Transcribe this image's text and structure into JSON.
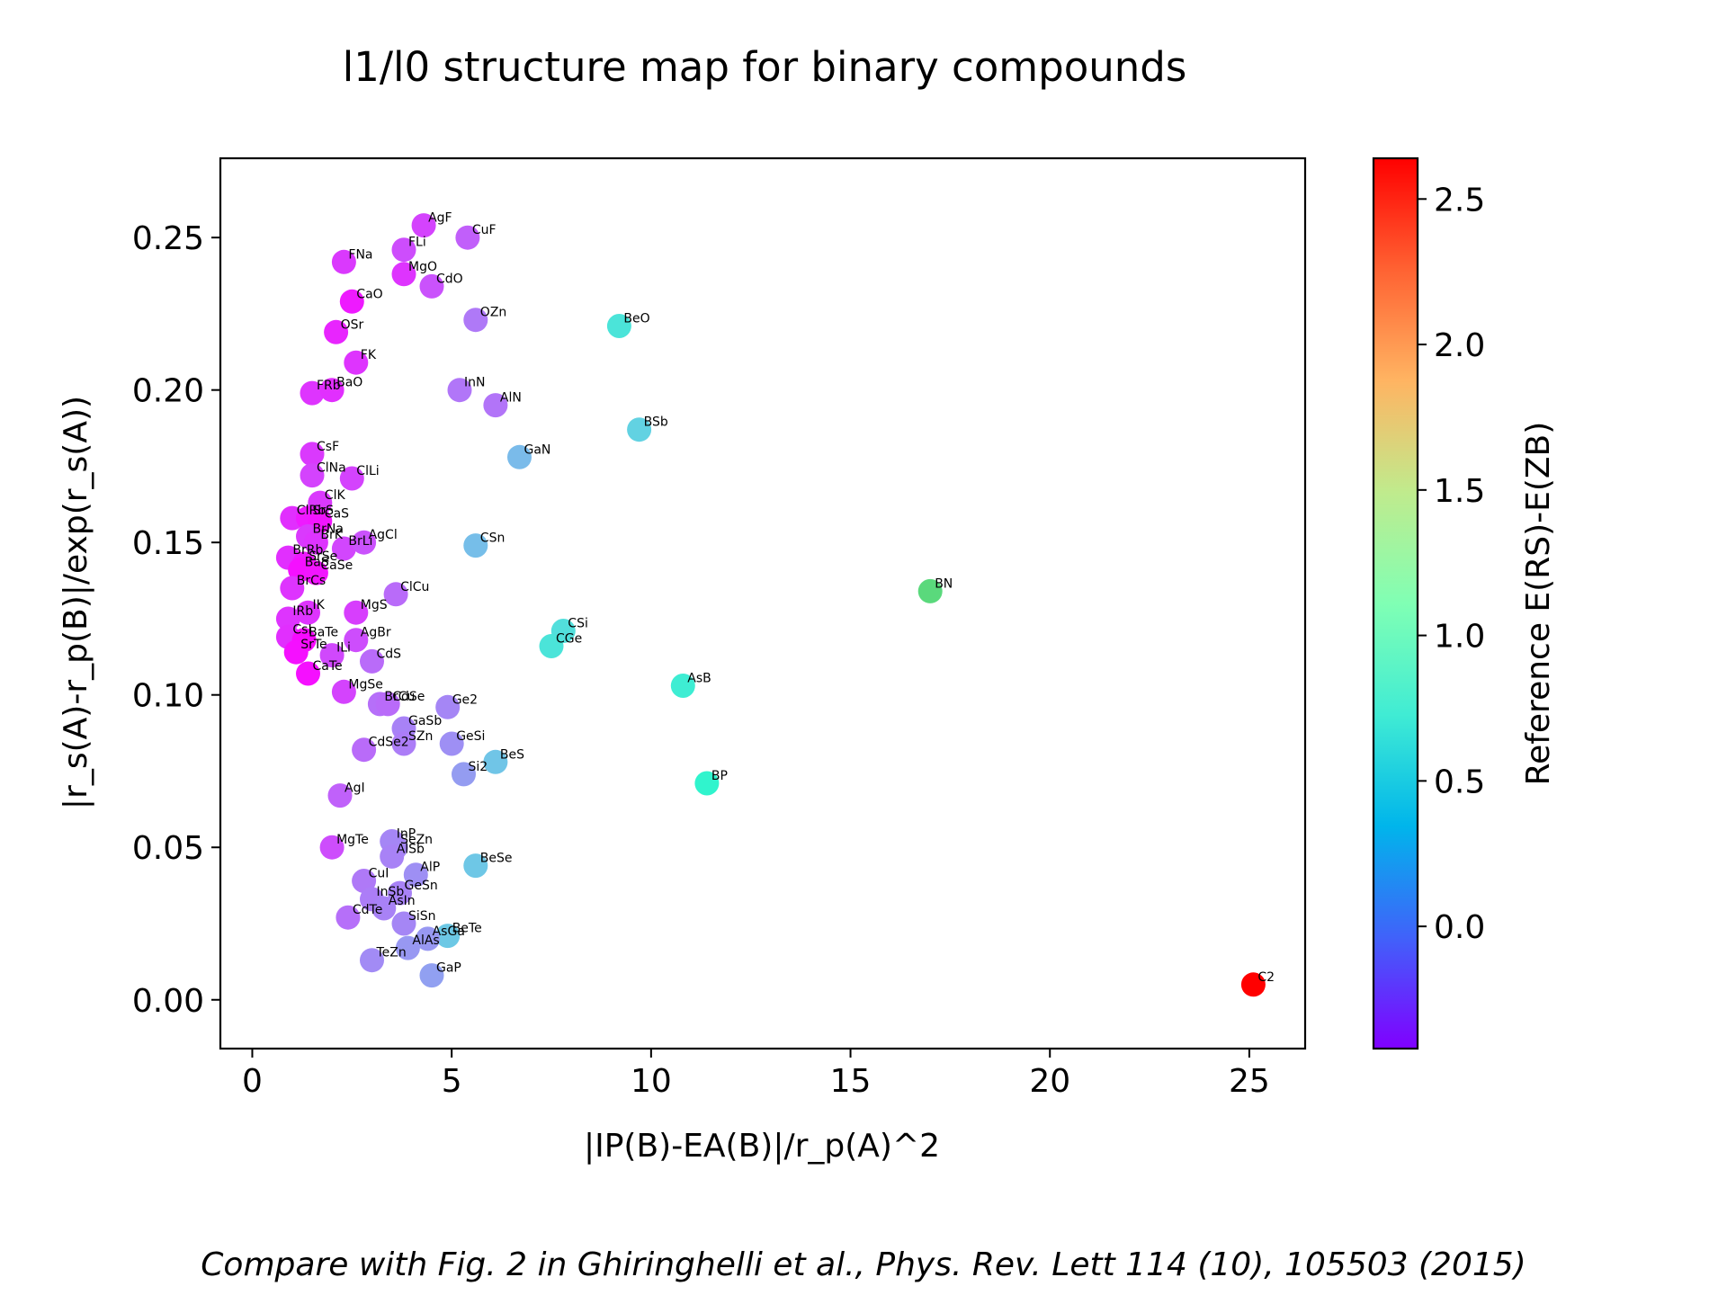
{
  "chart_data": {
    "type": "scatter",
    "title": "l1/l0 structure map for binary compounds",
    "xlabel": "|IP(B)-EA(B)|/r_p(A)^2",
    "ylabel": "|r_s(A)-r_p(B)|/exp(r_s(A))",
    "xlim": [
      -0.8,
      26.4
    ],
    "ylim": [
      -0.016,
      0.276
    ],
    "xticks": [
      "0",
      "5",
      "10",
      "15",
      "20",
      "25"
    ],
    "yticks": [
      "0.00",
      "0.05",
      "0.10",
      "0.15",
      "0.20",
      "0.25"
    ],
    "grid": false,
    "colorbar": {
      "label": "Reference E(RS)-E(ZB)",
      "range": [
        -0.42,
        2.64
      ],
      "ticks": [
        "0.0",
        "0.5",
        "1.0",
        "1.5",
        "2.0",
        "2.5"
      ],
      "colormap": "rainbow"
    },
    "points": [
      {
        "label": "AgF",
        "x": 4.3,
        "y": 0.254,
        "c": -0.16
      },
      {
        "label": "CuF",
        "x": 5.4,
        "y": 0.25,
        "c": -0.05
      },
      {
        "label": "FNa",
        "x": 2.3,
        "y": 0.242,
        "c": -0.2
      },
      {
        "label": "FLi",
        "x": 3.8,
        "y": 0.246,
        "c": -0.12
      },
      {
        "label": "MgO",
        "x": 3.8,
        "y": 0.238,
        "c": -0.22
      },
      {
        "label": "CdO",
        "x": 4.5,
        "y": 0.234,
        "c": -0.1
      },
      {
        "label": "CaO",
        "x": 2.5,
        "y": 0.229,
        "c": -0.32
      },
      {
        "label": "OZn",
        "x": 5.6,
        "y": 0.223,
        "c": 0.06
      },
      {
        "label": "BeO",
        "x": 9.2,
        "y": 0.221,
        "c": 0.66
      },
      {
        "label": "OSr",
        "x": 2.1,
        "y": 0.219,
        "c": -0.28
      },
      {
        "label": "FK",
        "x": 2.6,
        "y": 0.209,
        "c": -0.22
      },
      {
        "label": "FRb",
        "x": 1.5,
        "y": 0.199,
        "c": -0.22
      },
      {
        "label": "BaO",
        "x": 2.0,
        "y": 0.2,
        "c": -0.24
      },
      {
        "label": "InN",
        "x": 5.2,
        "y": 0.2,
        "c": 0.05
      },
      {
        "label": "AlN",
        "x": 6.1,
        "y": 0.195,
        "c": 0.04
      },
      {
        "label": "BSb",
        "x": 9.7,
        "y": 0.187,
        "c": 0.52
      },
      {
        "label": "GaN",
        "x": 6.7,
        "y": 0.178,
        "c": 0.38
      },
      {
        "label": "CsF",
        "x": 1.5,
        "y": 0.179,
        "c": -0.2
      },
      {
        "label": "ClNa",
        "x": 1.5,
        "y": 0.172,
        "c": -0.16
      },
      {
        "label": "ClLi",
        "x": 2.5,
        "y": 0.171,
        "c": -0.16
      },
      {
        "label": "ClK",
        "x": 1.7,
        "y": 0.163,
        "c": -0.2
      },
      {
        "label": "ClRb",
        "x": 1.0,
        "y": 0.158,
        "c": -0.24
      },
      {
        "label": "SrS",
        "x": 1.4,
        "y": 0.158,
        "c": -0.32
      },
      {
        "label": "CaS",
        "x": 1.7,
        "y": 0.157,
        "c": -0.34
      },
      {
        "label": "BrNa",
        "x": 1.4,
        "y": 0.152,
        "c": -0.2
      },
      {
        "label": "BrK",
        "x": 1.6,
        "y": 0.15,
        "c": -0.22
      },
      {
        "label": "BrLi",
        "x": 2.3,
        "y": 0.148,
        "c": -0.15
      },
      {
        "label": "AgCl",
        "x": 2.8,
        "y": 0.15,
        "c": -0.1
      },
      {
        "label": "CSn",
        "x": 5.6,
        "y": 0.149,
        "c": 0.4
      },
      {
        "label": "BrRb",
        "x": 0.9,
        "y": 0.145,
        "c": -0.24
      },
      {
        "label": "SrSe",
        "x": 1.3,
        "y": 0.143,
        "c": -0.32
      },
      {
        "label": "BaS",
        "x": 1.2,
        "y": 0.141,
        "c": -0.36
      },
      {
        "label": "CaSe",
        "x": 1.6,
        "y": 0.14,
        "c": -0.34
      },
      {
        "label": "BrCs",
        "x": 1.0,
        "y": 0.135,
        "c": -0.22
      },
      {
        "label": "BN",
        "x": 17.0,
        "y": 0.134,
        "c": 1.65
      },
      {
        "label": "ClCu",
        "x": 3.6,
        "y": 0.133,
        "c": 0.0
      },
      {
        "label": "MgS",
        "x": 2.6,
        "y": 0.127,
        "c": -0.18
      },
      {
        "label": "IRb",
        "x": 0.9,
        "y": 0.125,
        "c": -0.22
      },
      {
        "label": "IK",
        "x": 1.4,
        "y": 0.127,
        "c": -0.22
      },
      {
        "label": "CSi",
        "x": 7.8,
        "y": 0.121,
        "c": 0.62
      },
      {
        "label": "CGe",
        "x": 7.5,
        "y": 0.116,
        "c": 0.66
      },
      {
        "label": "CsI",
        "x": 0.9,
        "y": 0.119,
        "c": -0.24
      },
      {
        "label": "BaTe",
        "x": 1.3,
        "y": 0.118,
        "c": -0.38
      },
      {
        "label": "AgBr",
        "x": 2.6,
        "y": 0.118,
        "c": -0.12
      },
      {
        "label": "SrTe",
        "x": 1.1,
        "y": 0.114,
        "c": -0.36
      },
      {
        "label": "ILi",
        "x": 2.0,
        "y": 0.113,
        "c": -0.14
      },
      {
        "label": "CdS",
        "x": 3.0,
        "y": 0.111,
        "c": 0.0
      },
      {
        "label": "CaTe",
        "x": 1.4,
        "y": 0.107,
        "c": -0.36
      },
      {
        "label": "AsB",
        "x": 10.8,
        "y": 0.103,
        "c": 0.74
      },
      {
        "label": "MgSe",
        "x": 2.3,
        "y": 0.101,
        "c": -0.16
      },
      {
        "label": "BrCu",
        "x": 3.2,
        "y": 0.097,
        "c": 0.02
      },
      {
        "label": "CdSe",
        "x": 3.4,
        "y": 0.097,
        "c": 0.0
      },
      {
        "label": "Ge2",
        "x": 4.9,
        "y": 0.096,
        "c": 0.12
      },
      {
        "label": "GaSb",
        "x": 3.8,
        "y": 0.089,
        "c": 0.1
      },
      {
        "label": "SZn",
        "x": 3.8,
        "y": 0.084,
        "c": 0.08
      },
      {
        "label": "GeSi",
        "x": 5.0,
        "y": 0.084,
        "c": 0.16
      },
      {
        "label": "CdSe2",
        "x": 2.8,
        "y": 0.082,
        "c": 0.0
      },
      {
        "label": "BeS",
        "x": 6.1,
        "y": 0.078,
        "c": 0.44
      },
      {
        "label": "Si2",
        "x": 5.3,
        "y": 0.074,
        "c": 0.22
      },
      {
        "label": "BP",
        "x": 11.4,
        "y": 0.071,
        "c": 0.82
      },
      {
        "label": "AgI",
        "x": 2.2,
        "y": 0.067,
        "c": -0.04
      },
      {
        "label": "MgTe",
        "x": 2.0,
        "y": 0.05,
        "c": -0.12
      },
      {
        "label": "InP",
        "x": 3.5,
        "y": 0.052,
        "c": 0.12
      },
      {
        "label": "SeZn",
        "x": 3.6,
        "y": 0.05,
        "c": 0.12
      },
      {
        "label": "AlSb",
        "x": 3.5,
        "y": 0.047,
        "c": 0.1
      },
      {
        "label": "BeSe",
        "x": 5.6,
        "y": 0.044,
        "c": 0.45
      },
      {
        "label": "CuI",
        "x": 2.8,
        "y": 0.039,
        "c": 0.06
      },
      {
        "label": "AlP",
        "x": 4.1,
        "y": 0.041,
        "c": 0.16
      },
      {
        "label": "GeSn",
        "x": 3.7,
        "y": 0.035,
        "c": 0.1
      },
      {
        "label": "InSb",
        "x": 3.0,
        "y": 0.033,
        "c": 0.08
      },
      {
        "label": "AsIn",
        "x": 3.3,
        "y": 0.03,
        "c": 0.1
      },
      {
        "label": "CdTe",
        "x": 2.4,
        "y": 0.027,
        "c": 0.02
      },
      {
        "label": "SiSn",
        "x": 3.8,
        "y": 0.025,
        "c": 0.12
      },
      {
        "label": "BeTe",
        "x": 4.9,
        "y": 0.021,
        "c": 0.46
      },
      {
        "label": "AsGa",
        "x": 4.4,
        "y": 0.02,
        "c": 0.2
      },
      {
        "label": "AlAs",
        "x": 3.9,
        "y": 0.017,
        "c": 0.2
      },
      {
        "label": "TeZn",
        "x": 3.0,
        "y": 0.013,
        "c": 0.14
      },
      {
        "label": "GaP",
        "x": 4.5,
        "y": 0.008,
        "c": 0.24
      },
      {
        "label": "C2",
        "x": 25.1,
        "y": 0.005,
        "c": 2.64
      }
    ]
  },
  "caption": "Compare with Fig. 2 in Ghiringhelli et al., Phys. Rev. Lett 114 (10), 105503 (2015)"
}
